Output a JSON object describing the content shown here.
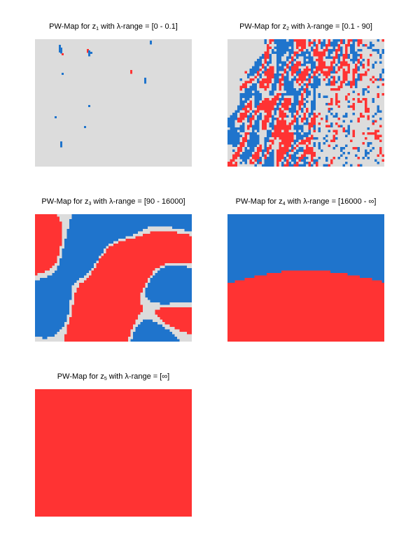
{
  "colors": {
    "background_zero": "#dcdcdc",
    "positive": "#ff3333",
    "negative": "#1f74cc"
  },
  "chart_data": [
    {
      "type": "heatmap",
      "title_prefix": "PW-Map for z",
      "subscript": "1",
      "title_suffix": " with λ-range = [0 - 0.1]",
      "pattern": "sparse"
    },
    {
      "type": "heatmap",
      "title_prefix": "PW-Map for z",
      "subscript": "2",
      "title_suffix": " with λ-range = [0.1 - 90]",
      "pattern": "fine"
    },
    {
      "type": "heatmap",
      "title_prefix": "PW-Map for z",
      "subscript": "3",
      "title_suffix": " with λ-range = [90 - 16000]",
      "pattern": "blobs"
    },
    {
      "type": "heatmap",
      "title_prefix": "PW-Map for z",
      "subscript": "4",
      "title_suffix": " with λ-range = [16000 - ∞]",
      "pattern": "split"
    },
    {
      "type": "heatmap",
      "title_prefix": "PW-Map for z",
      "subscript": "5",
      "title_suffix": " with λ-range = [∞]",
      "pattern": "solid"
    }
  ]
}
